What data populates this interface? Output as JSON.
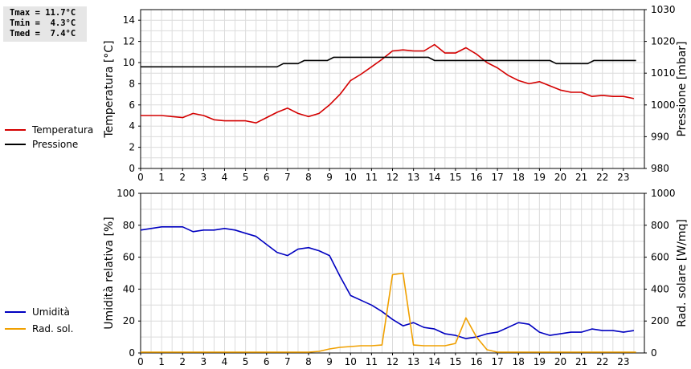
{
  "stats": {
    "tmax": "Tmax = 11.7°C",
    "tmin": "Tmin =  4.3°C",
    "tmed": "Tmed =  7.4°C"
  },
  "legend_top": [
    {
      "label": "Temperatura",
      "color": "#d40000"
    },
    {
      "label": "Pressione",
      "color": "#000000"
    }
  ],
  "legend_bottom": [
    {
      "label": "Umidità",
      "color": "#0000c0"
    },
    {
      "label": "Rad. sol.",
      "color": "#f0a000"
    }
  ],
  "chart_data": [
    {
      "type": "line",
      "ylabel": "Temperatura [°C]",
      "y2label": "Pressione [mbar]",
      "xlim": [
        0,
        24
      ],
      "x_ticks": [
        "0",
        "1",
        "2",
        "3",
        "4",
        "5",
        "6",
        "7",
        "8",
        "9",
        "10",
        "11",
        "12",
        "13",
        "14",
        "15",
        "16",
        "17",
        "18",
        "19",
        "20",
        "21",
        "22",
        "23"
      ],
      "ylim": [
        0,
        15
      ],
      "y_ticks": [
        0,
        2,
        4,
        6,
        8,
        10,
        12,
        14
      ],
      "y2lim": [
        980,
        1030
      ],
      "y2_ticks": [
        980,
        990,
        1000,
        1010,
        1020,
        1030
      ],
      "grid": true,
      "series": [
        {
          "name": "Temperatura",
          "axis": "left",
          "color": "#d40000",
          "x": [
            0,
            0.5,
            1,
            1.5,
            2,
            2.5,
            3,
            3.5,
            4,
            4.5,
            5,
            5.5,
            6,
            6.5,
            7,
            7.5,
            8,
            8.5,
            9,
            9.5,
            10,
            10.5,
            11,
            11.5,
            12,
            12.5,
            13,
            13.5,
            14,
            14.5,
            15,
            15.5,
            16,
            16.5,
            17,
            17.5,
            18,
            18.5,
            19,
            19.5,
            20,
            20.5,
            21,
            21.5,
            22,
            22.5,
            23,
            23.5
          ],
          "y": [
            5.0,
            5.0,
            5.0,
            4.9,
            4.8,
            5.2,
            5.0,
            4.6,
            4.5,
            4.5,
            4.5,
            4.3,
            4.8,
            5.3,
            5.7,
            5.2,
            4.9,
            5.2,
            6.0,
            7.0,
            8.3,
            8.9,
            9.6,
            10.3,
            11.1,
            11.2,
            11.1,
            11.1,
            11.7,
            10.9,
            10.9,
            11.4,
            10.8,
            10.0,
            9.5,
            8.8,
            8.3,
            8.0,
            8.2,
            7.8,
            7.4,
            7.2,
            7.2,
            6.8,
            6.9,
            6.8,
            6.8,
            6.6
          ]
        },
        {
          "name": "Pressione",
          "axis": "right",
          "color": "#000000",
          "x": [
            0,
            6.5,
            6.8,
            7.5,
            7.8,
            8.9,
            9.2,
            11.7,
            12,
            13.7,
            14,
            19.5,
            19.8,
            21.3,
            21.6,
            23.6
          ],
          "y": [
            1012,
            1012,
            1013,
            1013,
            1014,
            1014,
            1015,
            1015,
            1015,
            1015,
            1014,
            1014,
            1013,
            1013,
            1014,
            1014
          ]
        }
      ]
    },
    {
      "type": "line",
      "ylabel": "Umidità relativa [%]",
      "y2label": "Rad. solare [W/mq]",
      "xlim": [
        0,
        24
      ],
      "x_ticks": [
        "0",
        "1",
        "2",
        "3",
        "4",
        "5",
        "6",
        "7",
        "8",
        "9",
        "10",
        "11",
        "12",
        "13",
        "14",
        "15",
        "16",
        "17",
        "18",
        "19",
        "20",
        "21",
        "22",
        "23"
      ],
      "ylim": [
        0,
        100
      ],
      "y_ticks": [
        0,
        20,
        40,
        60,
        80,
        100
      ],
      "y2lim": [
        0,
        1000
      ],
      "y2_ticks": [
        0,
        200,
        400,
        600,
        800,
        1000
      ],
      "grid": true,
      "series": [
        {
          "name": "Umidità",
          "axis": "left",
          "color": "#0000c0",
          "x": [
            0,
            0.5,
            1,
            1.5,
            2,
            2.5,
            3,
            3.5,
            4,
            4.5,
            5,
            5.5,
            6,
            6.5,
            7,
            7.5,
            8,
            8.5,
            9,
            9.5,
            10,
            10.5,
            11,
            11.5,
            12,
            12.5,
            13,
            13.5,
            14,
            14.5,
            15,
            15.5,
            16,
            16.5,
            17,
            17.5,
            18,
            18.5,
            19,
            19.5,
            20,
            20.5,
            21,
            21.5,
            22,
            22.5,
            23,
            23.5
          ],
          "y": [
            77,
            78,
            79,
            79,
            79,
            76,
            77,
            77,
            78,
            77,
            75,
            73,
            68,
            63,
            61,
            65,
            66,
            64,
            61,
            48,
            36,
            33,
            30,
            26,
            21,
            17,
            19,
            16,
            15,
            12,
            11,
            9,
            10,
            12,
            13,
            16,
            19,
            18,
            13,
            11,
            12,
            13,
            13,
            15,
            14,
            14,
            13,
            14
          ]
        },
        {
          "name": "Rad. sol.",
          "axis": "right",
          "color": "#f0a000",
          "x": [
            0,
            7.5,
            8,
            8.5,
            9,
            9.5,
            10,
            10.5,
            11,
            11.5,
            12,
            12.5,
            13,
            13.5,
            14,
            14.5,
            15,
            15.5,
            16,
            16.5,
            17,
            17.5,
            23.6
          ],
          "y": [
            5,
            5,
            5,
            10,
            25,
            35,
            40,
            45,
            45,
            50,
            490,
            500,
            50,
            45,
            45,
            45,
            60,
            220,
            100,
            20,
            5,
            5,
            5
          ]
        }
      ]
    }
  ]
}
